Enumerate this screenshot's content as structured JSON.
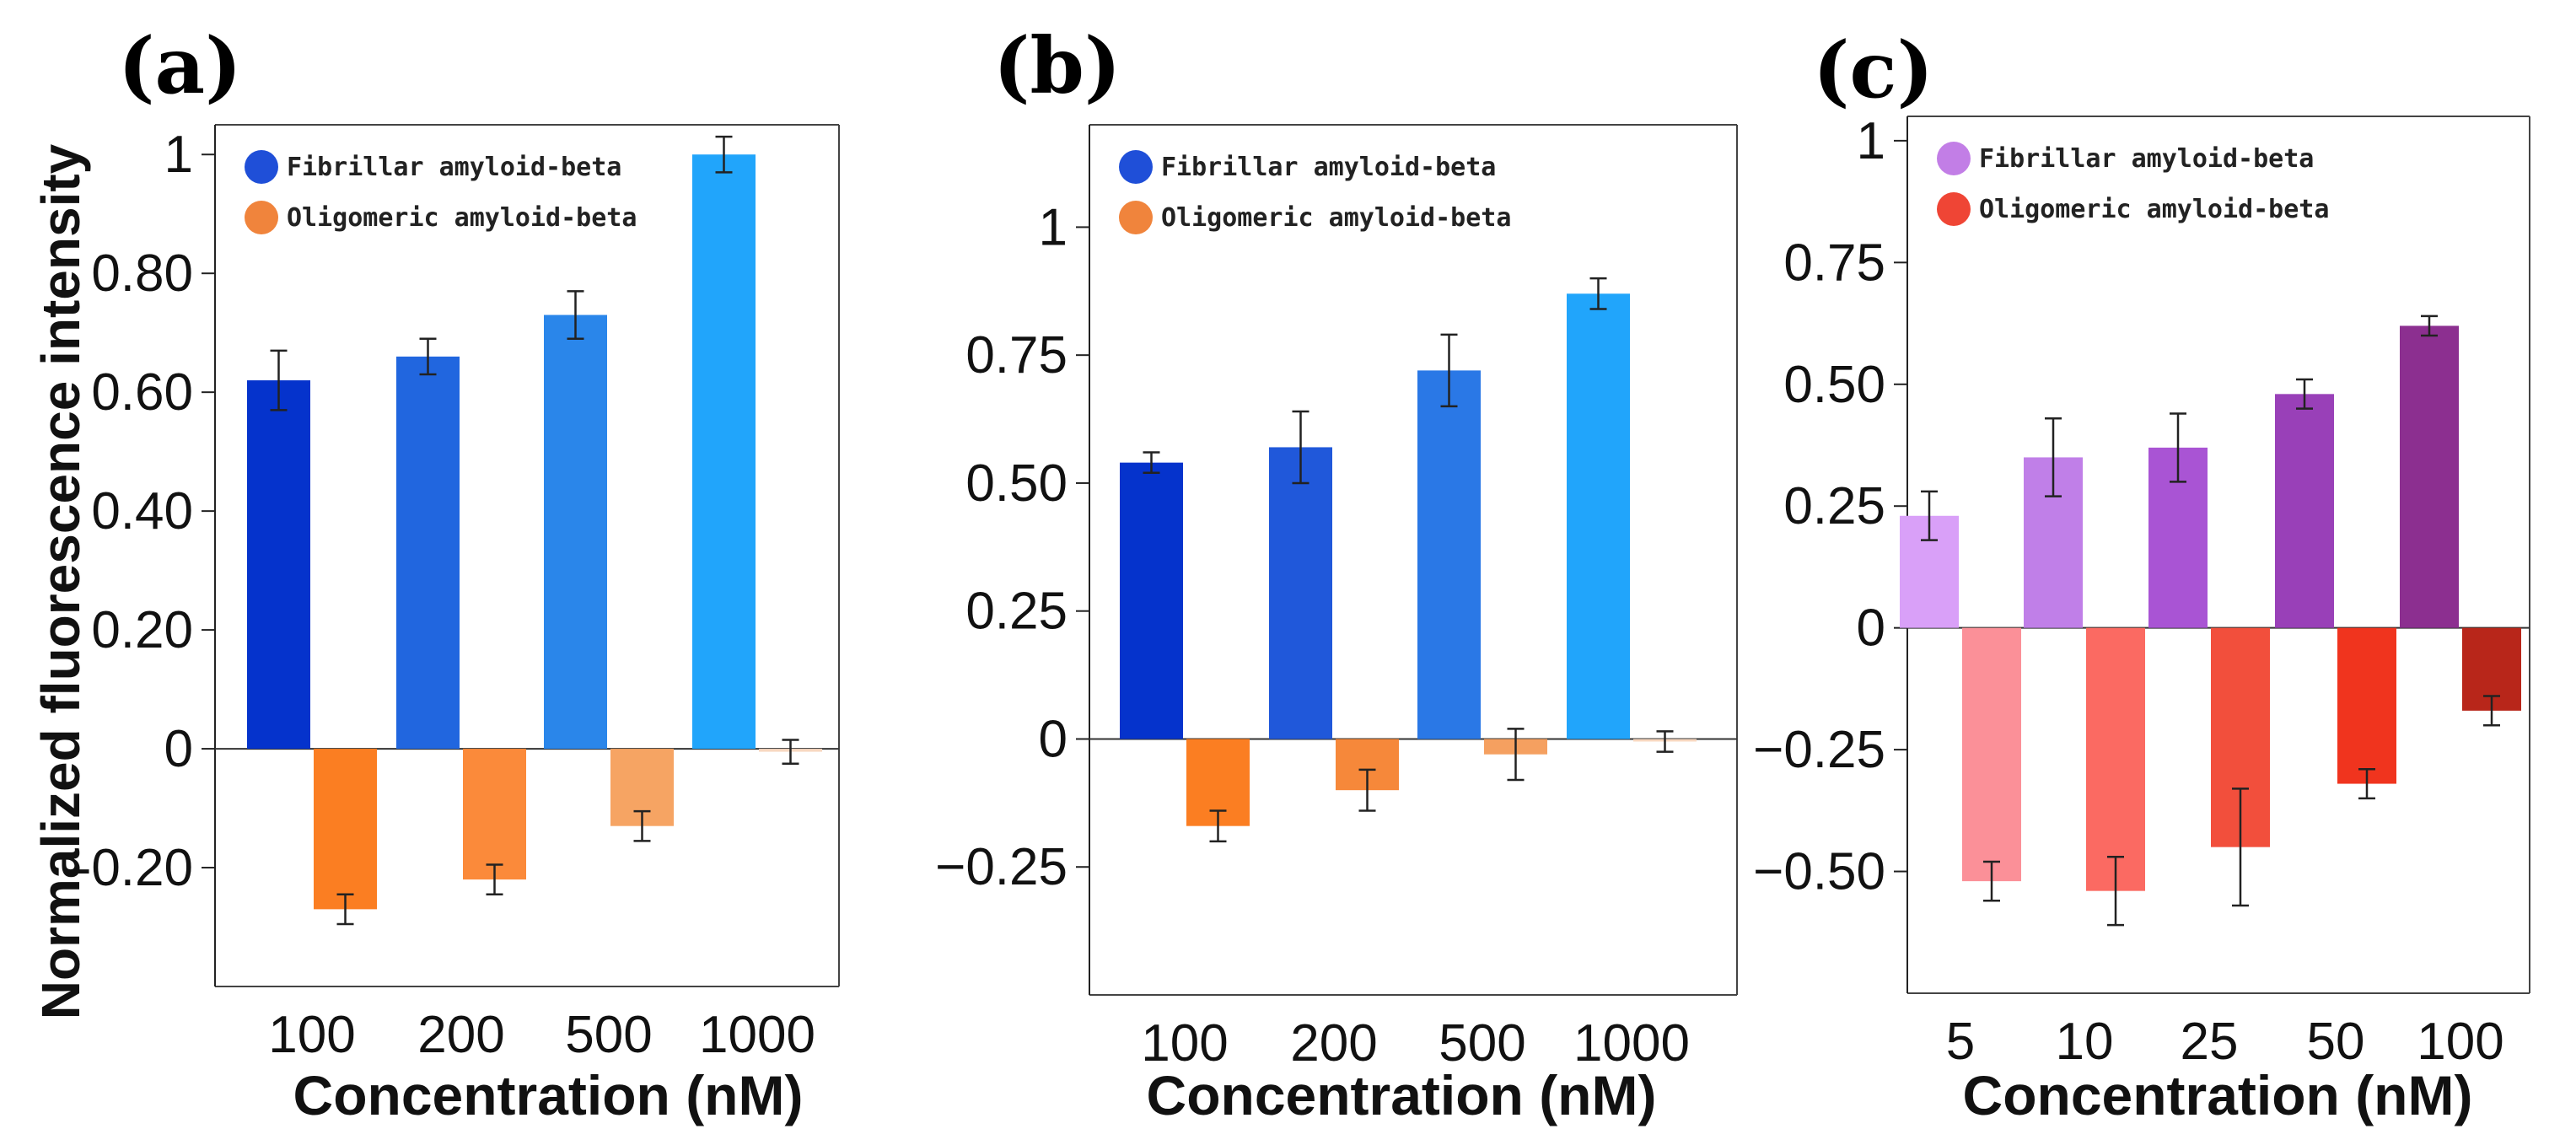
{
  "figure": {
    "ylabel": "Normalized fluorescence intensity"
  },
  "chart_data": [
    {
      "type": "bar",
      "panel_label": "(a)",
      "categories": [
        "100",
        "200",
        "500",
        "1000"
      ],
      "xlabel": "Concentration (nM)",
      "ylim": [
        -0.4,
        1.05
      ],
      "yticks": [
        1,
        0.8,
        0.6,
        0.4,
        0.2,
        0,
        -0.2
      ],
      "ytick_labels": [
        "1",
        "0.80",
        "0.60",
        "0.40",
        "0.20",
        "0",
        "-0.20"
      ],
      "legend": "top-left",
      "series": [
        {
          "name": "Fibrillar amyloid-beta",
          "legend_color": "#1f4fd8",
          "values": [
            0.62,
            0.66,
            0.73,
            1.0
          ],
          "errors": [
            0.05,
            0.03,
            0.04,
            0.03
          ],
          "colors": [
            "#0533cc",
            "#2166df",
            "#2a86ea",
            "#21a5fb"
          ]
        },
        {
          "name": "Oligomeric amyloid-beta",
          "legend_color": "#f0843c",
          "values": [
            -0.27,
            -0.22,
            -0.13,
            -0.005
          ],
          "errors": [
            0.025,
            0.025,
            0.025,
            0.02
          ],
          "colors": [
            "#fb7e22",
            "#fb8a3a",
            "#f6a463",
            "#f8d8c0"
          ]
        }
      ]
    },
    {
      "type": "bar",
      "panel_label": "(b)",
      "categories": [
        "100",
        "200",
        "500",
        "1000"
      ],
      "xlabel": "Concentration (nM)",
      "ylim": [
        -0.5,
        1.2
      ],
      "yticks": [
        1,
        0.75,
        0.5,
        0.25,
        0,
        -0.25
      ],
      "ytick_labels": [
        "1",
        "0.75",
        "0.50",
        "0.25",
        "0",
        "−0.25"
      ],
      "legend": "top-left",
      "series": [
        {
          "name": "Fibrillar amyloid-beta",
          "legend_color": "#1f4fd8",
          "values": [
            0.54,
            0.57,
            0.72,
            0.87
          ],
          "errors": [
            0.02,
            0.07,
            0.07,
            0.03
          ],
          "colors": [
            "#0533cc",
            "#2058da",
            "#2a78e6",
            "#21a5fb"
          ]
        },
        {
          "name": "Oligomeric amyloid-beta",
          "legend_color": "#f0843c",
          "values": [
            -0.17,
            -0.1,
            -0.03,
            -0.005
          ],
          "errors": [
            0.03,
            0.04,
            0.05,
            0.02
          ],
          "colors": [
            "#fb7e22",
            "#f6883a",
            "#f5a060",
            "#f8d8c0"
          ]
        }
      ]
    },
    {
      "type": "bar",
      "panel_label": "(c)",
      "categories": [
        "5",
        "10",
        "25",
        "50",
        "100"
      ],
      "xlabel": "Concentration (nM)",
      "ylim": [
        -0.75,
        1.05
      ],
      "yticks": [
        1,
        0.75,
        0.5,
        0.25,
        0,
        -0.25,
        -0.5
      ],
      "ytick_labels": [
        "1",
        "0.75",
        "0.50",
        "0.25",
        "0",
        "−0.25",
        "−0.50"
      ],
      "legend": "top-left",
      "series": [
        {
          "name": "Fibrillar amyloid-beta",
          "legend_color": "#c27ee6",
          "values": [
            0.23,
            0.35,
            0.37,
            0.48,
            0.62
          ],
          "errors": [
            0.05,
            0.08,
            0.07,
            0.03,
            0.02
          ],
          "colors": [
            "#d9a0f8",
            "#c07fe8",
            "#a954d4",
            "#9940b8",
            "#8c2f90"
          ]
        },
        {
          "name": "Oligomeric amyloid-beta",
          "legend_color": "#ef4535",
          "values": [
            -0.52,
            -0.54,
            -0.45,
            -0.32,
            -0.17
          ],
          "errors": [
            0.04,
            0.07,
            0.12,
            0.03,
            0.03
          ],
          "colors": [
            "#fb9098",
            "#fb6a62",
            "#f24f3c",
            "#f0341e",
            "#b8261a"
          ]
        }
      ]
    }
  ]
}
